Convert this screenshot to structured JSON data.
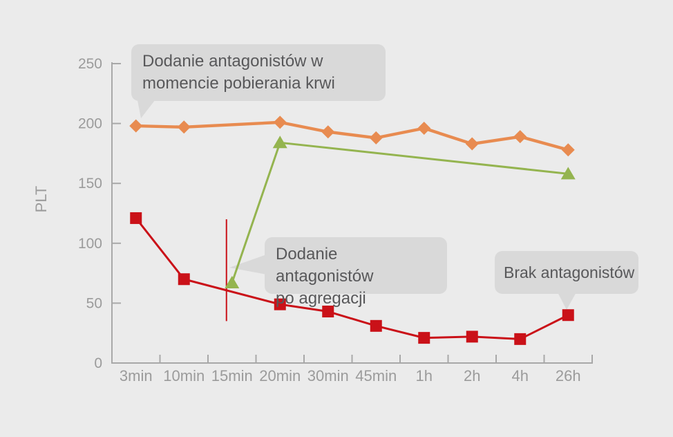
{
  "page": {
    "background": "#ebebeb"
  },
  "colors": {
    "axis": "#a8a8a8",
    "tick_text": "#9b9b9b",
    "bubble_fill": "#d9d9d9",
    "bubble_text": "#58585a"
  },
  "chart_data": {
    "type": "line",
    "title": "",
    "xlabel": "",
    "ylabel": "PLT",
    "grid": false,
    "legend_position": "none (labeled via callout bubbles)",
    "x_categories": [
      "3min",
      "10min",
      "15min",
      "20min",
      "30min",
      "45min",
      "1h",
      "2h",
      "4h",
      "26h"
    ],
    "y_ticks": [
      0,
      50,
      100,
      150,
      200,
      250
    ],
    "ylim": [
      0,
      250
    ],
    "series": [
      {
        "id": "antagonists-at-blood-draw",
        "name": "Dodanie antagonistów w momencie pobierania krwi",
        "color": "#e88b50",
        "marker": "diamond",
        "line_width": 4.4,
        "values": [
          198,
          197,
          null,
          201,
          193,
          188,
          196,
          183,
          189,
          178
        ]
      },
      {
        "id": "antagonists-after-aggregation",
        "name": "Dodanie antagonistów po agregacji",
        "color": "#94b44f",
        "marker": "triangle",
        "line_width": 3,
        "values": [
          null,
          null,
          67,
          184,
          null,
          null,
          null,
          null,
          null,
          158
        ]
      },
      {
        "id": "no-antagonists",
        "name": "Brak antagonistów",
        "color": "#ca1118",
        "marker": "square",
        "line_width": 3,
        "values": [
          121,
          70,
          null,
          49,
          43,
          31,
          21,
          22,
          20,
          40
        ]
      }
    ],
    "annotation_line": {
      "category": "15min",
      "value_from": 120,
      "value_to": 35,
      "color": "#ca1118"
    }
  },
  "callouts": {
    "at_blood_draw": {
      "line1": "Dodanie antagonistów w",
      "line2": "momencie pobierania krwi"
    },
    "after_aggregation": {
      "line1": "Dodanie antagonistów",
      "line2": "po agregacji"
    },
    "none": {
      "line1": "Brak antagonistów"
    }
  }
}
